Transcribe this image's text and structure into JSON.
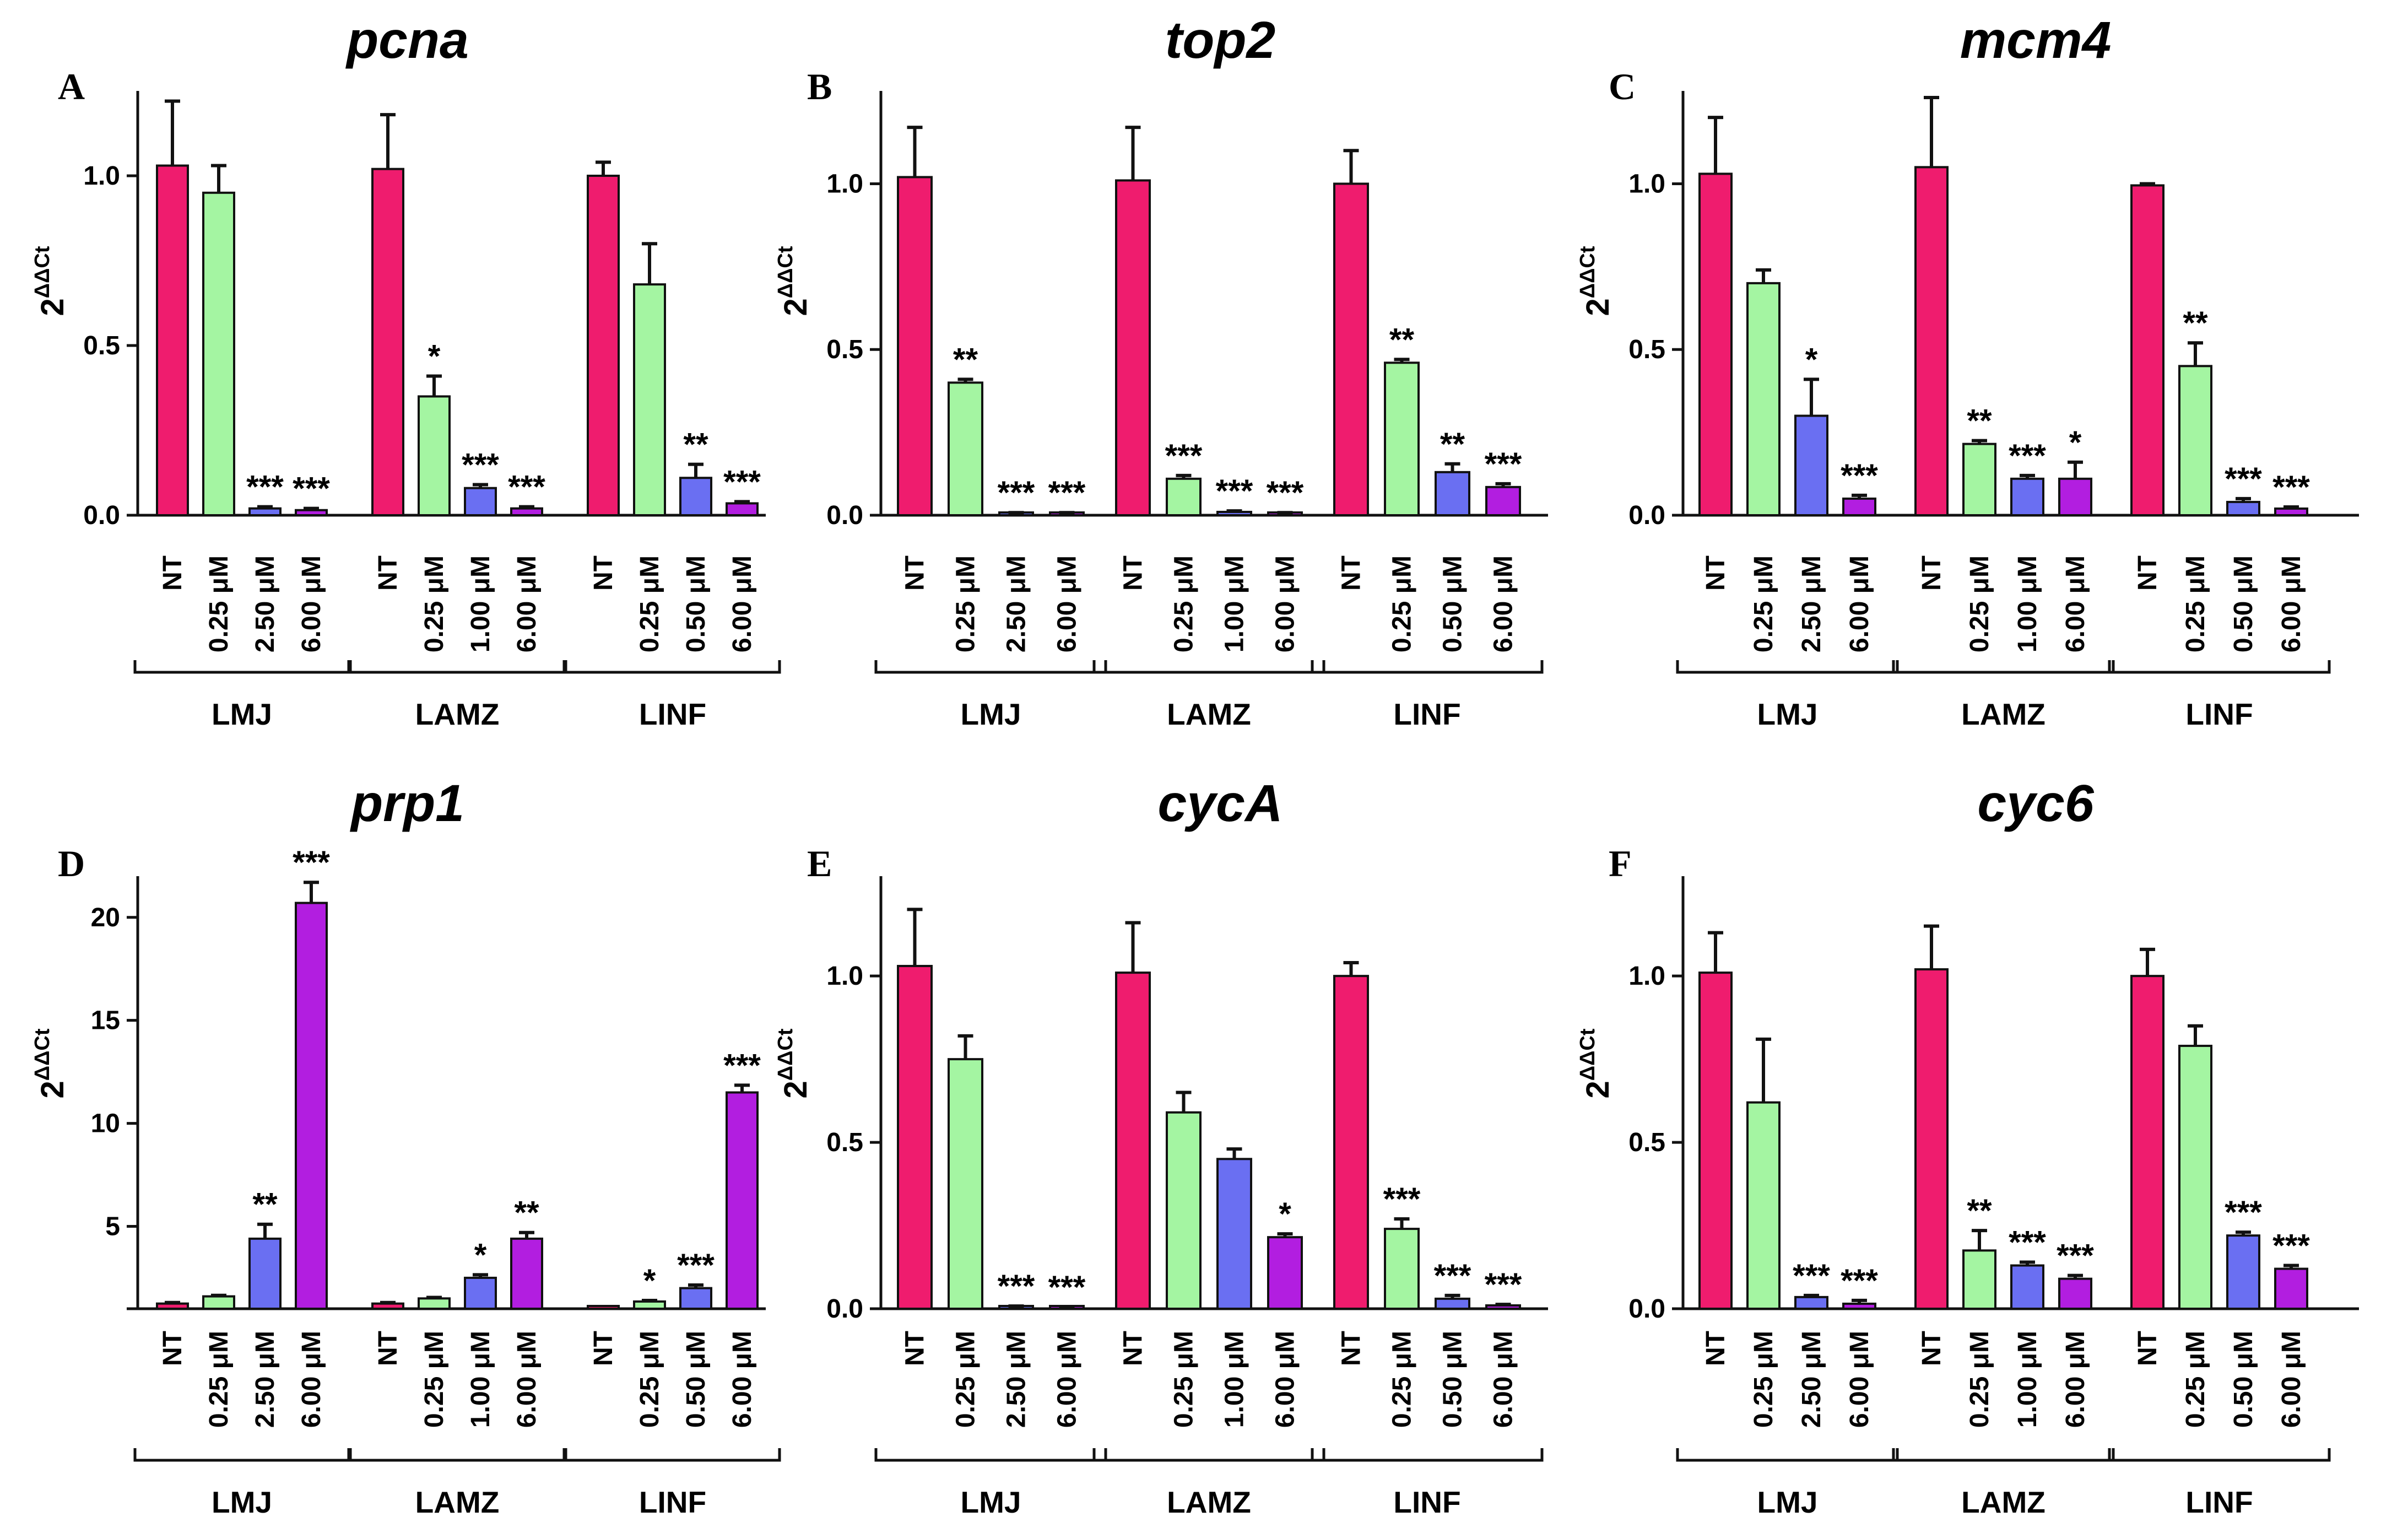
{
  "figure": {
    "colors": {
      "NT": "#ef1c6e",
      "low": "#a4f5a2",
      "mid": "#6a6ff2",
      "high": "#b21ee0",
      "axis": "#111111"
    }
  },
  "chart_data": [
    {
      "panel": "A",
      "title": "pcna",
      "type": "bar",
      "ylabel": "2^ΔΔCt",
      "ylabel_base": "2",
      "ylabel_exp": "ΔΔCt",
      "ylim": [
        0,
        1.25
      ],
      "yticks": [
        0.0,
        0.5,
        1.0
      ],
      "ytick_labels": [
        "0.0",
        "0.5",
        "1.0"
      ],
      "groups": [
        {
          "name": "LMJ",
          "categories": [
            "NT",
            "0.25 μM",
            "2.50 μM",
            "6.00 μM"
          ],
          "values": [
            1.03,
            0.95,
            0.02,
            0.015
          ],
          "errors": [
            0.19,
            0.08,
            0.005,
            0.005
          ],
          "significance": [
            "",
            "",
            "***",
            "***"
          ]
        },
        {
          "name": "LAMZ",
          "categories": [
            "NT",
            "0.25 μM",
            "1.00 μM",
            "6.00 μM"
          ],
          "values": [
            1.02,
            0.35,
            0.08,
            0.02
          ],
          "errors": [
            0.16,
            0.06,
            0.01,
            0.005
          ],
          "significance": [
            "",
            "*",
            "***",
            "***"
          ]
        },
        {
          "name": "LINF",
          "categories": [
            "NT",
            "0.25 μM",
            "0.50 μM",
            "6.00 μM"
          ],
          "values": [
            1.0,
            0.68,
            0.11,
            0.035
          ],
          "errors": [
            0.04,
            0.12,
            0.04,
            0.005
          ],
          "significance": [
            "",
            "",
            "**",
            "***"
          ]
        }
      ]
    },
    {
      "panel": "B",
      "title": "top2",
      "type": "bar",
      "ylabel": "2^ΔΔCt",
      "ylabel_base": "2",
      "ylabel_exp": "ΔΔCt",
      "ylim": [
        0,
        1.28
      ],
      "yticks": [
        0.0,
        0.5,
        1.0
      ],
      "ytick_labels": [
        "0.0",
        "0.5",
        "1.0"
      ],
      "groups": [
        {
          "name": "LMJ",
          "categories": [
            "NT",
            "0.25 μM",
            "2.50 μM",
            "6.00 μM"
          ],
          "values": [
            1.02,
            0.4,
            0.005,
            0.005
          ],
          "errors": [
            0.15,
            0.01,
            0.003,
            0.003
          ],
          "significance": [
            "",
            "**",
            "***",
            "***"
          ]
        },
        {
          "name": "LAMZ",
          "categories": [
            "NT",
            "0.25 μM",
            "1.00 μM",
            "6.00 μM"
          ],
          "values": [
            1.01,
            0.11,
            0.01,
            0.005
          ],
          "errors": [
            0.16,
            0.01,
            0.003,
            0.003
          ],
          "significance": [
            "",
            "***",
            "***",
            "***"
          ]
        },
        {
          "name": "LINF",
          "categories": [
            "NT",
            "0.25 μM",
            "0.50 μM",
            "6.00 μM"
          ],
          "values": [
            1.0,
            0.46,
            0.13,
            0.085
          ],
          "errors": [
            0.1,
            0.01,
            0.025,
            0.01
          ],
          "significance": [
            "",
            "**",
            "**",
            "***"
          ]
        }
      ]
    },
    {
      "panel": "C",
      "title": "mcm4",
      "type": "bar",
      "ylabel": "2^ΔΔCt",
      "ylabel_base": "2",
      "ylabel_exp": "ΔΔCt",
      "ylim": [
        0,
        1.28
      ],
      "yticks": [
        0.0,
        0.5,
        1.0
      ],
      "ytick_labels": [
        "0.0",
        "0.5",
        "1.0"
      ],
      "groups": [
        {
          "name": "LMJ",
          "categories": [
            "NT",
            "0.25 μM",
            "2.50 μM",
            "6.00 μM"
          ],
          "values": [
            1.03,
            0.7,
            0.3,
            0.05
          ],
          "errors": [
            0.17,
            0.04,
            0.11,
            0.01
          ],
          "significance": [
            "",
            "",
            "*",
            "***"
          ]
        },
        {
          "name": "LAMZ",
          "categories": [
            "NT",
            "0.25 μM",
            "1.00 μM",
            "6.00 μM"
          ],
          "values": [
            1.05,
            0.215,
            0.11,
            0.11
          ],
          "errors": [
            0.21,
            0.01,
            0.01,
            0.05
          ],
          "significance": [
            "",
            "**",
            "***",
            "*"
          ]
        },
        {
          "name": "LINF",
          "categories": [
            "NT",
            "0.25 μM",
            "0.50 μM",
            "6.00 μM"
          ],
          "values": [
            0.995,
            0.45,
            0.04,
            0.02
          ],
          "errors": [
            0.005,
            0.07,
            0.01,
            0.005
          ],
          "significance": [
            "",
            "**",
            "***",
            "***"
          ]
        }
      ]
    },
    {
      "panel": "D",
      "title": "prp1",
      "type": "bar",
      "ylabel": "2^ΔΔCt",
      "ylabel_base": "2",
      "ylabel_exp": "ΔΔCt",
      "ylim": [
        1,
        22
      ],
      "yticks": [
        5,
        10,
        15,
        20
      ],
      "ytick_labels": [
        "5",
        "10",
        "15",
        "20"
      ],
      "groups": [
        {
          "name": "LMJ",
          "categories": [
            "NT",
            "0.25 μM",
            "2.50 μM",
            "6.00 μM"
          ],
          "values": [
            1.25,
            1.6,
            4.4,
            20.7
          ],
          "errors": [
            0.05,
            0.05,
            0.7,
            1.0
          ],
          "significance": [
            "",
            "",
            "**",
            "***"
          ]
        },
        {
          "name": "LAMZ",
          "categories": [
            "NT",
            "0.25 μM",
            "1.00 μM",
            "6.00 μM"
          ],
          "values": [
            1.25,
            1.5,
            2.5,
            4.4
          ],
          "errors": [
            0.05,
            0.05,
            0.15,
            0.3
          ],
          "significance": [
            "",
            "",
            "*",
            "**"
          ]
        },
        {
          "name": "LINF",
          "categories": [
            "NT",
            "0.25 μM",
            "0.50 μM",
            "6.00 μM"
          ],
          "values": [
            1.0,
            1.35,
            2.0,
            11.5
          ],
          "errors": [
            0.0,
            0.05,
            0.15,
            0.35
          ],
          "significance": [
            "",
            "*",
            "***",
            "***"
          ]
        }
      ]
    },
    {
      "panel": "E",
      "title": "cycA",
      "type": "bar",
      "ylabel": "2^ΔΔCt",
      "ylabel_base": "2",
      "ylabel_exp": "ΔΔCt",
      "ylim": [
        0,
        1.3
      ],
      "yticks": [
        0.0,
        0.5,
        1.0
      ],
      "ytick_labels": [
        "0.0",
        "0.5",
        "1.0"
      ],
      "groups": [
        {
          "name": "LMJ",
          "categories": [
            "NT",
            "0.25 μM",
            "2.50 μM",
            "6.00 μM"
          ],
          "values": [
            1.03,
            0.75,
            0.005,
            0.003
          ],
          "errors": [
            0.17,
            0.07,
            0.003,
            0.002
          ],
          "significance": [
            "",
            "",
            "***",
            "***"
          ]
        },
        {
          "name": "LAMZ",
          "categories": [
            "NT",
            "0.25 μM",
            "1.00 μM",
            "6.00 μM"
          ],
          "values": [
            1.01,
            0.59,
            0.45,
            0.215
          ],
          "errors": [
            0.15,
            0.06,
            0.03,
            0.01
          ],
          "significance": [
            "",
            "",
            "",
            "*"
          ]
        },
        {
          "name": "LINF",
          "categories": [
            "NT",
            "0.25 μM",
            "0.50 μM",
            "6.00 μM"
          ],
          "values": [
            1.0,
            0.24,
            0.03,
            0.01
          ],
          "errors": [
            0.04,
            0.03,
            0.01,
            0.003
          ],
          "significance": [
            "",
            "***",
            "***",
            "***"
          ]
        }
      ]
    },
    {
      "panel": "F",
      "title": "cyc6",
      "type": "bar",
      "ylabel": "2^ΔΔCt",
      "ylabel_base": "2",
      "ylabel_exp": "ΔΔCt",
      "ylim": [
        0,
        1.3
      ],
      "yticks": [
        0.0,
        0.5,
        1.0
      ],
      "ytick_labels": [
        "0.0",
        "0.5",
        "1.0"
      ],
      "groups": [
        {
          "name": "LMJ",
          "categories": [
            "NT",
            "0.25 μM",
            "2.50 μM",
            "6.00 μM"
          ],
          "values": [
            1.01,
            0.62,
            0.035,
            0.015
          ],
          "errors": [
            0.12,
            0.19,
            0.005,
            0.01
          ],
          "significance": [
            "",
            "",
            "***",
            "***"
          ]
        },
        {
          "name": "LAMZ",
          "categories": [
            "NT",
            "0.25 μM",
            "1.00 μM",
            "6.00 μM"
          ],
          "values": [
            1.02,
            0.175,
            0.13,
            0.09
          ],
          "errors": [
            0.13,
            0.06,
            0.01,
            0.01
          ],
          "significance": [
            "",
            "**",
            "***",
            "***"
          ]
        },
        {
          "name": "LINF",
          "categories": [
            "NT",
            "0.25 μM",
            "0.50 μM",
            "6.00 μM"
          ],
          "values": [
            1.0,
            0.79,
            0.22,
            0.12
          ],
          "errors": [
            0.08,
            0.06,
            0.01,
            0.01
          ],
          "significance": [
            "",
            "",
            "***",
            "***"
          ]
        }
      ]
    }
  ]
}
